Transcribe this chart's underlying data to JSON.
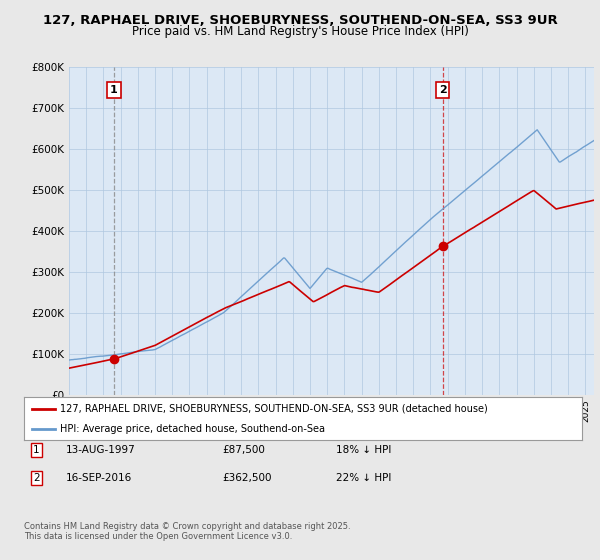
{
  "title_line1": "127, RAPHAEL DRIVE, SHOEBURYNESS, SOUTHEND-ON-SEA, SS3 9UR",
  "title_line2": "Price paid vs. HM Land Registry's House Price Index (HPI)",
  "ylim": [
    0,
    800000
  ],
  "yticks": [
    0,
    100000,
    200000,
    300000,
    400000,
    500000,
    600000,
    700000,
    800000
  ],
  "ytick_labels": [
    "£0",
    "£100K",
    "£200K",
    "£300K",
    "£400K",
    "£500K",
    "£600K",
    "£700K",
    "£800K"
  ],
  "background_color": "#e8e8e8",
  "plot_bg_color": "#dce8f5",
  "red_line_color": "#cc0000",
  "blue_line_color": "#6699cc",
  "sale1_x": 1997.617,
  "sale1_y": 87500,
  "sale1_label": "1",
  "sale2_x": 2016.708,
  "sale2_y": 362500,
  "sale2_label": "2",
  "vline1_color": "#888888",
  "vline1_style": "--",
  "vline2_color": "#cc0000",
  "vline2_style": "--",
  "legend_label_red": "127, RAPHAEL DRIVE, SHOEBURYNESS, SOUTHEND-ON-SEA, SS3 9UR (detached house)",
  "legend_label_blue": "HPI: Average price, detached house, Southend-on-Sea",
  "table_row1": [
    "1",
    "13-AUG-1997",
    "£87,500",
    "18% ↓ HPI"
  ],
  "table_row2": [
    "2",
    "16-SEP-2016",
    "£362,500",
    "22% ↓ HPI"
  ],
  "footer": "Contains HM Land Registry data © Crown copyright and database right 2025.\nThis data is licensed under the Open Government Licence v3.0.",
  "xmin": 1995,
  "xmax": 2025.5
}
